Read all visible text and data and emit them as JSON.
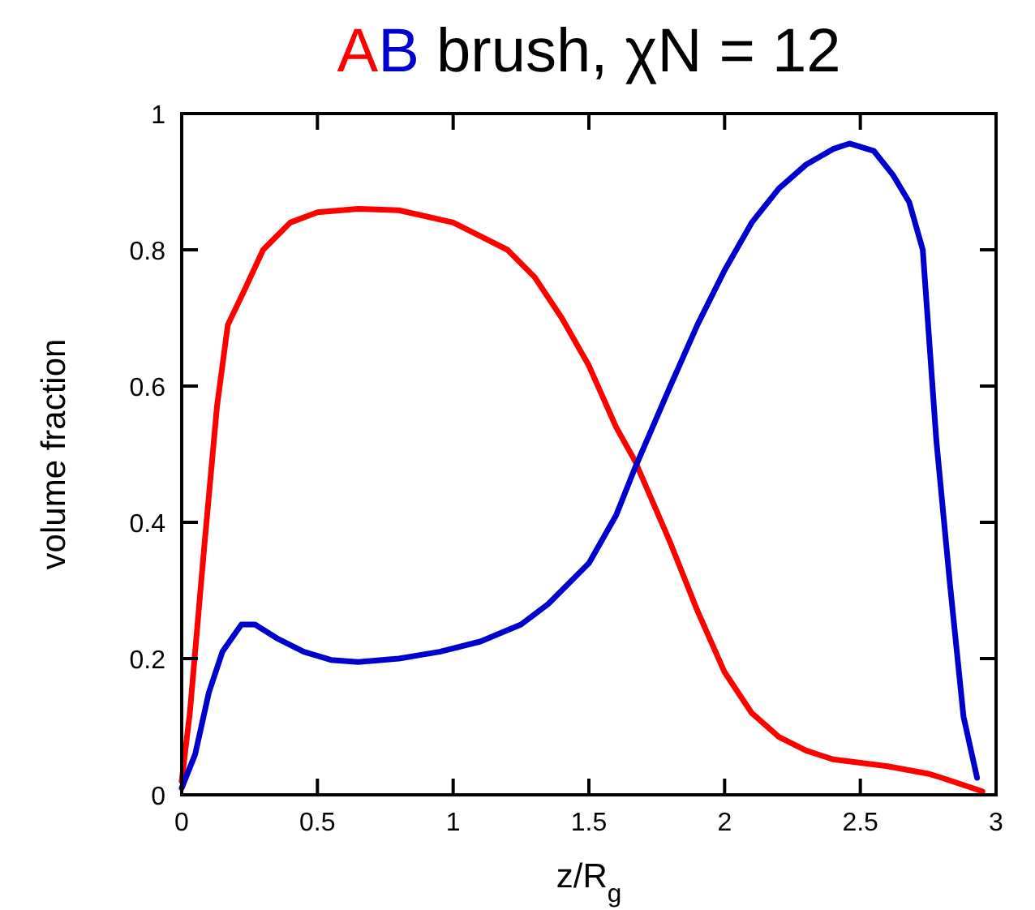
{
  "chart_data": {
    "type": "line",
    "title": "AB brush, χN = 12",
    "xlabel": "z/R$_{g}$",
    "ylabel": "volume fraction",
    "xlim": [
      0,
      3
    ],
    "ylim": [
      0,
      1
    ],
    "xticks": [
      0,
      0.5,
      1,
      1.5,
      2,
      2.5,
      3
    ],
    "yticks": [
      0,
      0.2,
      0.4,
      0.6,
      0.8,
      1
    ],
    "grid": false,
    "marker": "none",
    "line_style": "solid",
    "series": [
      {
        "color": "#ff0000",
        "x": [
          0,
          0.03,
          0.08,
          0.13,
          0.17,
          0.23,
          0.3,
          0.4,
          0.5,
          0.65,
          0.8,
          1.0,
          1.1,
          1.2,
          1.3,
          1.4,
          1.5,
          1.6,
          1.67,
          1.8,
          1.9,
          2.0,
          2.1,
          2.2,
          2.3,
          2.4,
          2.5,
          2.6,
          2.75,
          2.8,
          2.95
        ],
        "values": [
          0.02,
          0.12,
          0.35,
          0.57,
          0.69,
          0.74,
          0.8,
          0.84,
          0.855,
          0.86,
          0.858,
          0.84,
          0.82,
          0.8,
          0.76,
          0.7,
          0.63,
          0.54,
          0.49,
          0.37,
          0.27,
          0.18,
          0.12,
          0.085,
          0.065,
          0.052,
          0.047,
          0.042,
          0.031,
          0.025,
          0.005
        ]
      },
      {
        "color": "#0000cc",
        "x": [
          0,
          0.05,
          0.1,
          0.15,
          0.22,
          0.27,
          0.35,
          0.45,
          0.55,
          0.65,
          0.8,
          0.95,
          1.1,
          1.25,
          1.35,
          1.5,
          1.6,
          1.67,
          1.8,
          1.9,
          2.0,
          2.1,
          2.2,
          2.3,
          2.4,
          2.46,
          2.55,
          2.62,
          2.68,
          2.73,
          2.78,
          2.83,
          2.88,
          2.93
        ],
        "values": [
          0.01,
          0.06,
          0.15,
          0.21,
          0.25,
          0.25,
          0.23,
          0.21,
          0.198,
          0.195,
          0.2,
          0.21,
          0.225,
          0.25,
          0.28,
          0.34,
          0.41,
          0.48,
          0.6,
          0.69,
          0.77,
          0.84,
          0.89,
          0.925,
          0.948,
          0.956,
          0.945,
          0.91,
          0.87,
          0.8,
          0.52,
          0.31,
          0.115,
          0.025
        ]
      }
    ]
  }
}
